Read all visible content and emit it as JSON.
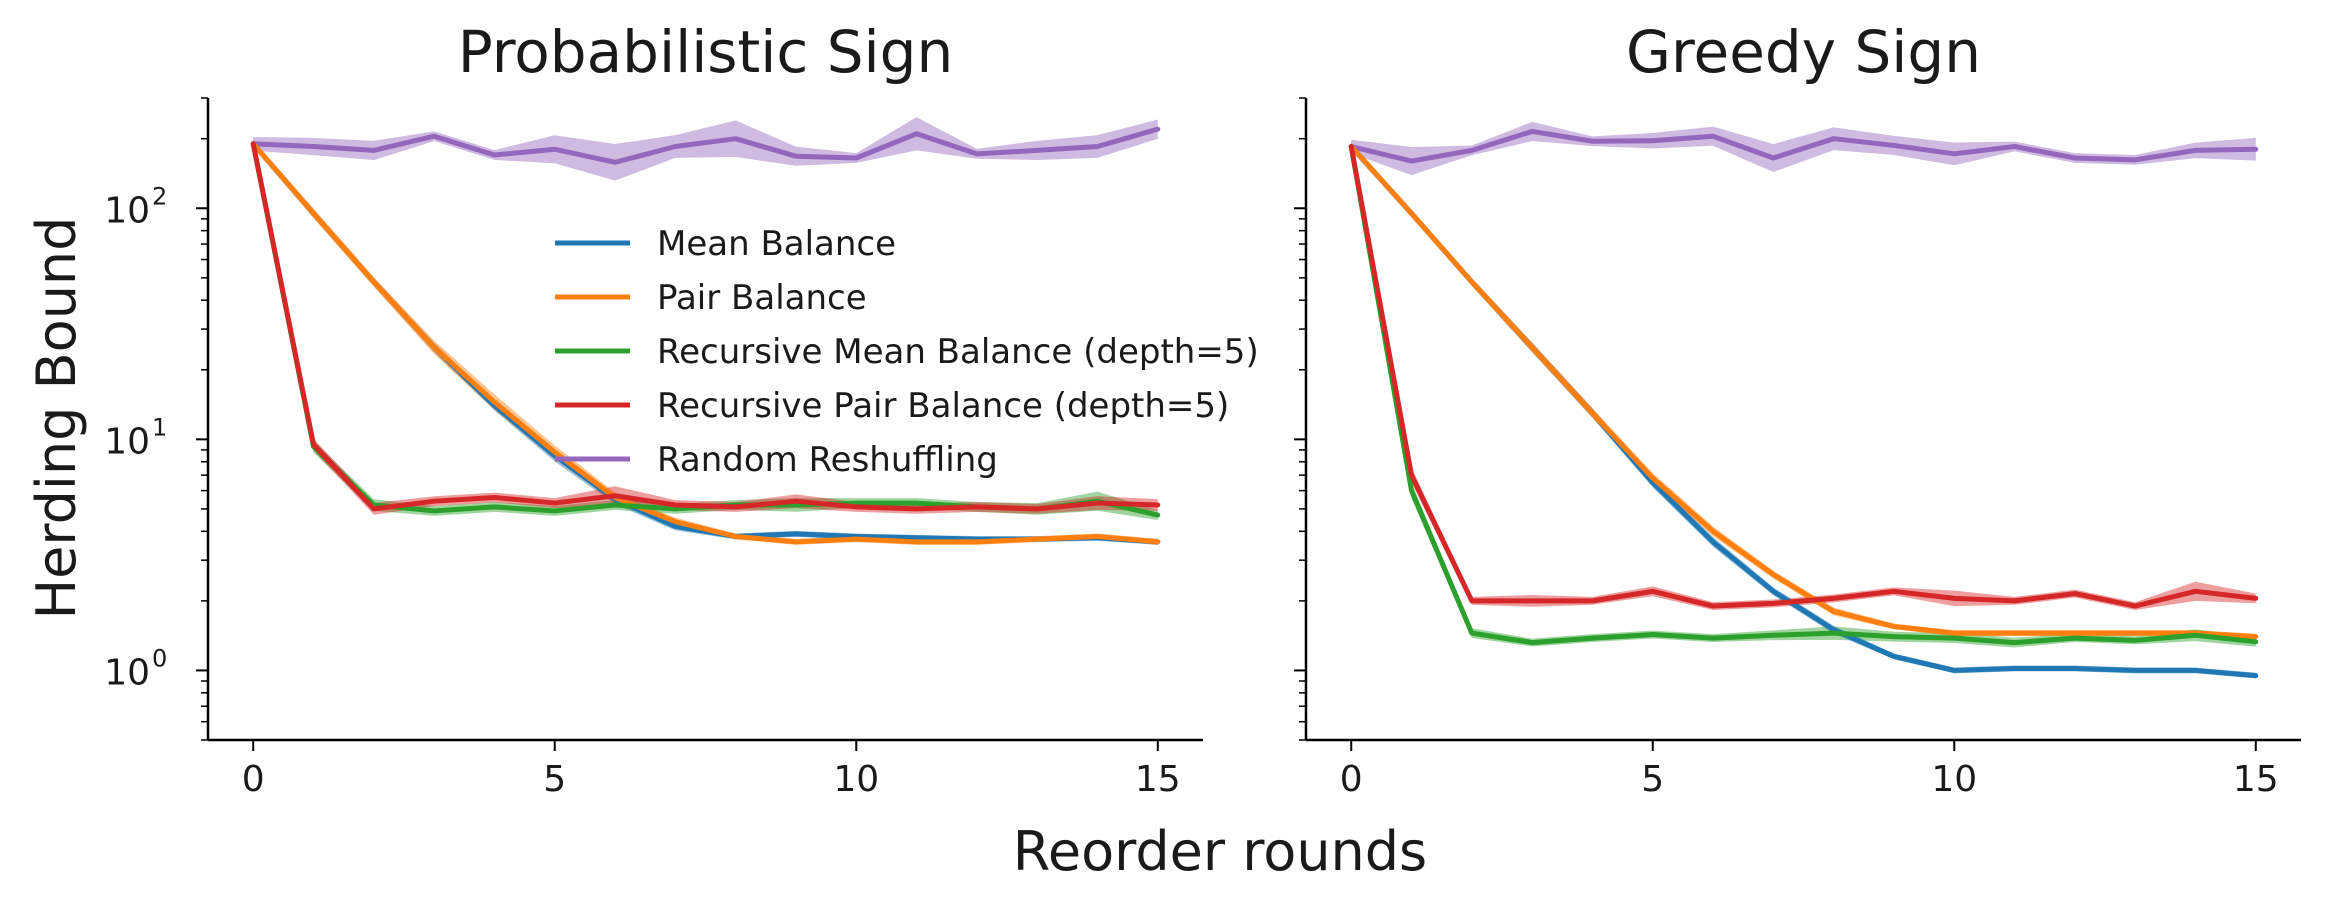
{
  "figure": {
    "xlabel": "Reorder rounds",
    "ylabel": "Herding Bound"
  },
  "legend": {
    "placement": "upper-center of left panel",
    "entries": [
      {
        "name": "Mean Balance",
        "color": "#1f77b4"
      },
      {
        "name": "Pair Balance",
        "color": "#ff7f0e"
      },
      {
        "name": "Recursive Mean Balance (depth=5)",
        "color": "#2ca02c"
      },
      {
        "name": "Recursive Pair Balance (depth=5)",
        "color": "#d62728"
      },
      {
        "name": "Random Reshuffling",
        "color": "#9467bd"
      }
    ]
  },
  "chart_data": [
    {
      "type": "line",
      "title": "Probabilistic Sign",
      "xlabel": "",
      "ylabel": "Herding Bound",
      "yscale": "log",
      "xlim": [
        -0.75,
        15.75
      ],
      "ylim": [
        0.5,
        300
      ],
      "xticks": [
        0,
        5,
        10,
        15
      ],
      "yticks": [
        {
          "base": "10",
          "exp": "0",
          "value": 1
        },
        {
          "base": "10",
          "exp": "1",
          "value": 10
        },
        {
          "base": "10",
          "exp": "2",
          "value": 100
        }
      ],
      "grid": false,
      "x": [
        0,
        1,
        2,
        3,
        4,
        5,
        6,
        7,
        8,
        9,
        10,
        11,
        12,
        13,
        14,
        15
      ],
      "series": [
        {
          "name": "Mean Balance",
          "color": "#1f77b4",
          "values": [
            190,
            95,
            48,
            25,
            14,
            8.5,
            5.5,
            4.2,
            3.8,
            3.9,
            3.8,
            3.75,
            3.7,
            3.7,
            3.75,
            3.6
          ],
          "band": [
            0.04,
            0.04,
            0.04,
            0.05,
            0.05,
            0.06,
            0.05,
            0.04,
            0.03,
            0.03,
            0.03,
            0.03,
            0.03,
            0.03,
            0.03,
            0.03
          ]
        },
        {
          "name": "Pair Balance",
          "color": "#ff7f0e",
          "values": [
            190,
            95,
            48,
            25,
            14.5,
            8.8,
            5.6,
            4.4,
            3.8,
            3.6,
            3.7,
            3.6,
            3.6,
            3.7,
            3.8,
            3.6
          ],
          "band": [
            0.04,
            0.05,
            0.05,
            0.07,
            0.08,
            0.07,
            0.05,
            0.04,
            0.03,
            0.03,
            0.03,
            0.03,
            0.03,
            0.03,
            0.03,
            0.03
          ]
        },
        {
          "name": "Recursive Mean Balance (depth=5)",
          "color": "#2ca02c",
          "values": [
            190,
            9.3,
            5.2,
            4.9,
            5.1,
            4.9,
            5.2,
            5.0,
            5.2,
            5.2,
            5.3,
            5.3,
            5.1,
            5.0,
            5.4,
            4.7
          ],
          "band": [
            0.04,
            0.06,
            0.06,
            0.05,
            0.05,
            0.05,
            0.05,
            0.05,
            0.05,
            0.07,
            0.05,
            0.05,
            0.05,
            0.06,
            0.1,
            0.05
          ]
        },
        {
          "name": "Recursive Pair Balance (depth=5)",
          "color": "#d62728",
          "values": [
            190,
            9.5,
            5.0,
            5.4,
            5.6,
            5.3,
            5.7,
            5.2,
            5.1,
            5.4,
            5.1,
            5.0,
            5.1,
            5.0,
            5.3,
            5.2
          ],
          "band": [
            0.04,
            0.06,
            0.06,
            0.05,
            0.05,
            0.05,
            0.1,
            0.05,
            0.05,
            0.07,
            0.05,
            0.05,
            0.05,
            0.05,
            0.07,
            0.06
          ]
        },
        {
          "name": "Random Reshuffling",
          "color": "#9467bd",
          "values": [
            190,
            185,
            178,
            205,
            170,
            180,
            158,
            185,
            200,
            168,
            165,
            210,
            172,
            178,
            185,
            220
          ],
          "band": [
            0.07,
            0.09,
            0.1,
            0.05,
            0.05,
            0.15,
            0.2,
            0.12,
            0.2,
            0.1,
            0.05,
            0.18,
            0.05,
            0.1,
            0.12,
            0.1
          ]
        }
      ]
    },
    {
      "type": "line",
      "title": "Greedy Sign",
      "xlabel": "",
      "ylabel": "",
      "yscale": "log",
      "xlim": [
        -0.75,
        15.75
      ],
      "ylim": [
        0.5,
        300
      ],
      "xticks": [
        0,
        5,
        10,
        15
      ],
      "grid": false,
      "x": [
        0,
        1,
        2,
        3,
        4,
        5,
        6,
        7,
        8,
        9,
        10,
        11,
        12,
        13,
        14,
        15
      ],
      "series": [
        {
          "name": "Mean Balance",
          "color": "#1f77b4",
          "values": [
            185,
            95,
            48,
            25,
            13,
            6.5,
            3.6,
            2.2,
            1.5,
            1.15,
            1.0,
            1.02,
            1.02,
            1.0,
            1.0,
            0.95
          ],
          "band": [
            0.04,
            0.04,
            0.04,
            0.05,
            0.05,
            0.05,
            0.05,
            0.04,
            0.04,
            0.03,
            0.03,
            0.03,
            0.03,
            0.03,
            0.03,
            0.03
          ]
        },
        {
          "name": "Pair Balance",
          "color": "#ff7f0e",
          "values": [
            185,
            95,
            48,
            25,
            13,
            6.8,
            4.0,
            2.6,
            1.8,
            1.55,
            1.45,
            1.45,
            1.45,
            1.45,
            1.45,
            1.4
          ],
          "band": [
            0.04,
            0.04,
            0.04,
            0.05,
            0.05,
            0.05,
            0.05,
            0.04,
            0.04,
            0.03,
            0.03,
            0.03,
            0.03,
            0.03,
            0.03,
            0.03
          ]
        },
        {
          "name": "Recursive Mean Balance (depth=5)",
          "color": "#2ca02c",
          "values": [
            185,
            6.0,
            1.45,
            1.32,
            1.38,
            1.43,
            1.38,
            1.42,
            1.45,
            1.4,
            1.38,
            1.32,
            1.38,
            1.35,
            1.42,
            1.33
          ],
          "band": [
            0.04,
            0.08,
            0.05,
            0.04,
            0.04,
            0.04,
            0.04,
            0.05,
            0.07,
            0.05,
            0.05,
            0.05,
            0.04,
            0.04,
            0.06,
            0.05
          ]
        },
        {
          "name": "Recursive Pair Balance (depth=5)",
          "color": "#d62728",
          "values": [
            185,
            7.0,
            2.0,
            2.0,
            2.0,
            2.2,
            1.9,
            1.95,
            2.05,
            2.2,
            2.05,
            2.0,
            2.15,
            1.9,
            2.2,
            2.05
          ],
          "band": [
            0.04,
            0.08,
            0.04,
            0.06,
            0.04,
            0.05,
            0.04,
            0.04,
            0.04,
            0.04,
            0.08,
            0.04,
            0.04,
            0.04,
            0.1,
            0.05
          ]
        },
        {
          "name": "Random Reshuffling",
          "color": "#9467bd",
          "values": [
            185,
            160,
            178,
            215,
            195,
            196,
            205,
            165,
            200,
            187,
            172,
            185,
            165,
            162,
            178,
            180
          ],
          "band": [
            0.07,
            0.15,
            0.05,
            0.1,
            0.05,
            0.08,
            0.1,
            0.15,
            0.12,
            0.1,
            0.12,
            0.05,
            0.05,
            0.05,
            0.08,
            0.12
          ]
        }
      ]
    }
  ]
}
